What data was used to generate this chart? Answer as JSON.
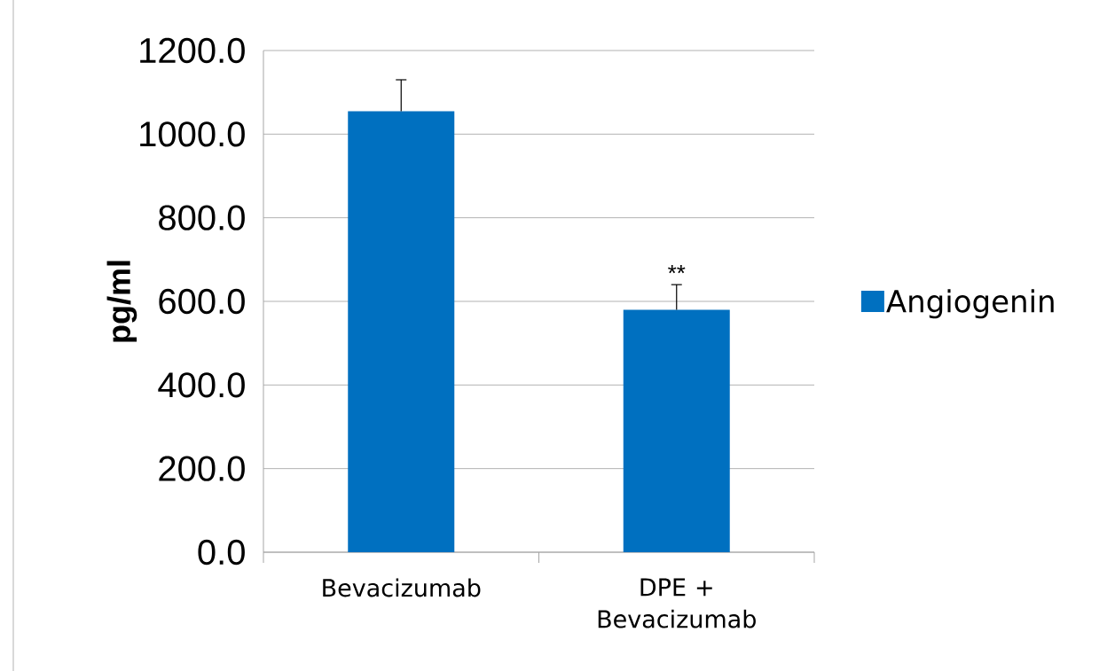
{
  "chart_data": {
    "type": "bar",
    "ylabel": "pg/ml",
    "categories": [
      "Bevacizumab",
      "DPE + Bevacizumab"
    ],
    "series": [
      {
        "name": "Angiogenin",
        "color": "#0070c0",
        "values": [
          1055,
          580
        ],
        "errors": [
          75,
          60
        ]
      }
    ],
    "ylim": [
      0,
      1200
    ],
    "yticks": [
      {
        "value": 0,
        "label": "0.0"
      },
      {
        "value": 200,
        "label": "200.0"
      },
      {
        "value": 400,
        "label": "400.0"
      },
      {
        "value": 600,
        "label": "600.0"
      },
      {
        "value": 800,
        "label": "800.0"
      },
      {
        "value": 1000,
        "label": "1000.0"
      },
      {
        "value": 1200,
        "label": "1200.0"
      }
    ],
    "grid": "y",
    "legend": "right",
    "annotations": [
      {
        "text": "**",
        "x": "DPE + Bevacizumab",
        "y": 640
      }
    ]
  }
}
